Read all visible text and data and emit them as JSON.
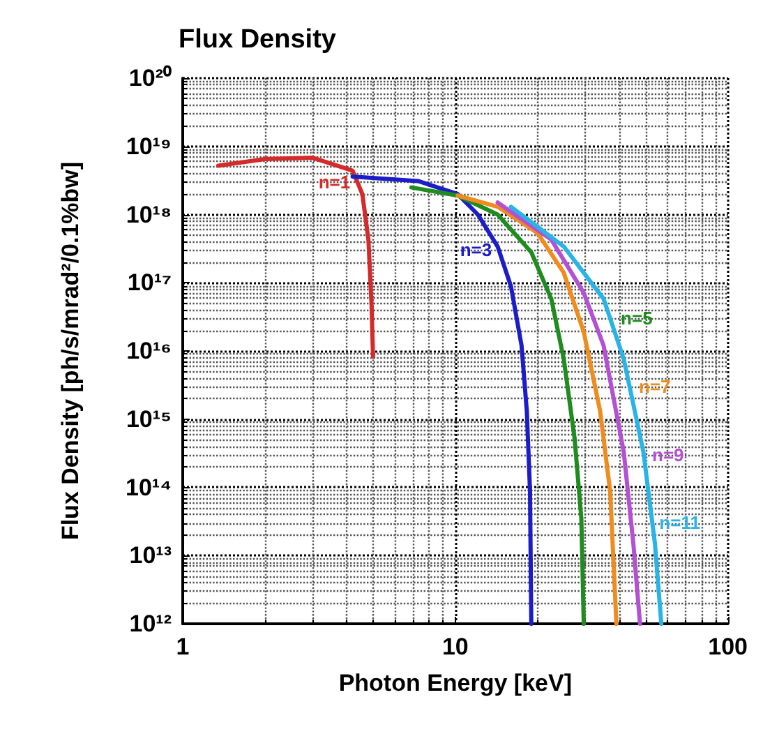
{
  "chart_data": {
    "type": "line",
    "title": "Flux Density",
    "xlabel": "Photon Energy [keV]",
    "ylabel": "Flux Density [ph/s/mrad²/0.1%bw]",
    "log": "xy",
    "grid": true,
    "legend": false,
    "marker": "none",
    "line_style": "solid",
    "xlim": [
      1,
      100
    ],
    "xticks": [
      1,
      10,
      100
    ],
    "ylim": [
      1000000000000.0,
      1e+20
    ],
    "yticks": [
      {
        "value": 1000000000000.0,
        "label": "10¹²"
      },
      {
        "value": 10000000000000.0,
        "label": "10¹³"
      },
      {
        "value": 100000000000000.0,
        "label": "10¹⁴"
      },
      {
        "value": 1000000000000000.0,
        "label": "10¹⁵"
      },
      {
        "value": 1e+16,
        "label": "10¹⁶"
      },
      {
        "value": 1e+17,
        "label": "10¹⁷"
      },
      {
        "value": 1e+18,
        "label": "10¹⁸"
      },
      {
        "value": 1e+19,
        "label": "10¹⁹"
      },
      {
        "value": 1e+20,
        "label": "10²⁰"
      }
    ],
    "series": [
      {
        "name": "n=1",
        "color": "#d42a2a",
        "x": [
          1.35,
          2,
          3,
          4.2,
          4.56,
          4.8,
          4.93,
          4.99
        ],
        "values": [
          5.2e+18,
          6.5e+18,
          6.8e+18,
          4.4e+18,
          2e+18,
          4.3e+17,
          4.6e+16,
          8300000000000000.0
        ]
      },
      {
        "name": "n=3",
        "color": "#1c1cc8",
        "x": [
          4.2,
          7.3,
          10.2,
          12.1,
          14.3,
          16,
          17.5,
          18.3,
          18.8,
          19
        ],
        "values": [
          3.6e+18,
          3.1e+18,
          2e+18,
          1e+18,
          3.4e+17,
          8.9e+16,
          1.2e+16,
          1300000000000000.0,
          87000000000000.0,
          1000000000000.0
        ]
      },
      {
        "name": "n=5",
        "color": "#1e8c1e",
        "x": [
          6.9,
          10.2,
          14.3,
          19,
          22.5,
          25,
          27.4,
          29,
          29.6
        ],
        "values": [
          2.5e+18,
          1.9e+18,
          1e+18,
          2.8e+17,
          5.8e+16,
          7600000000000000.0,
          520000000000000.0,
          35000000000000.0,
          1000000000000.0
        ]
      },
      {
        "name": "n=7",
        "color": "#f08c1e",
        "x": [
          10.2,
          14.3,
          20,
          25,
          29.6,
          34,
          37,
          39
        ],
        "values": [
          1.9e+18,
          1.3e+18,
          5.4e+17,
          1.4e+17,
          1.9e+16,
          1300000000000000.0,
          87000000000000.0,
          1000000000000.0
        ]
      },
      {
        "name": "n=9",
        "color": "#b450d2",
        "x": [
          14.3,
          22.5,
          29.6,
          35,
          41.5,
          45,
          47.6
        ],
        "values": [
          1.5e+18,
          4.3e+17,
          7.1e+16,
          1.2e+16,
          330000000000000.0,
          15000000000000.0,
          1000000000000.0
        ]
      },
      {
        "name": "n=11",
        "color": "#28b4e6",
        "x": [
          16,
          25,
          35,
          41.5,
          49,
          54,
          57
        ],
        "values": [
          1.3e+18,
          3.4e+17,
          5.8e+16,
          7600000000000000.0,
          330000000000000.0,
          15000000000000.0,
          1000000000000.0
        ]
      }
    ]
  }
}
